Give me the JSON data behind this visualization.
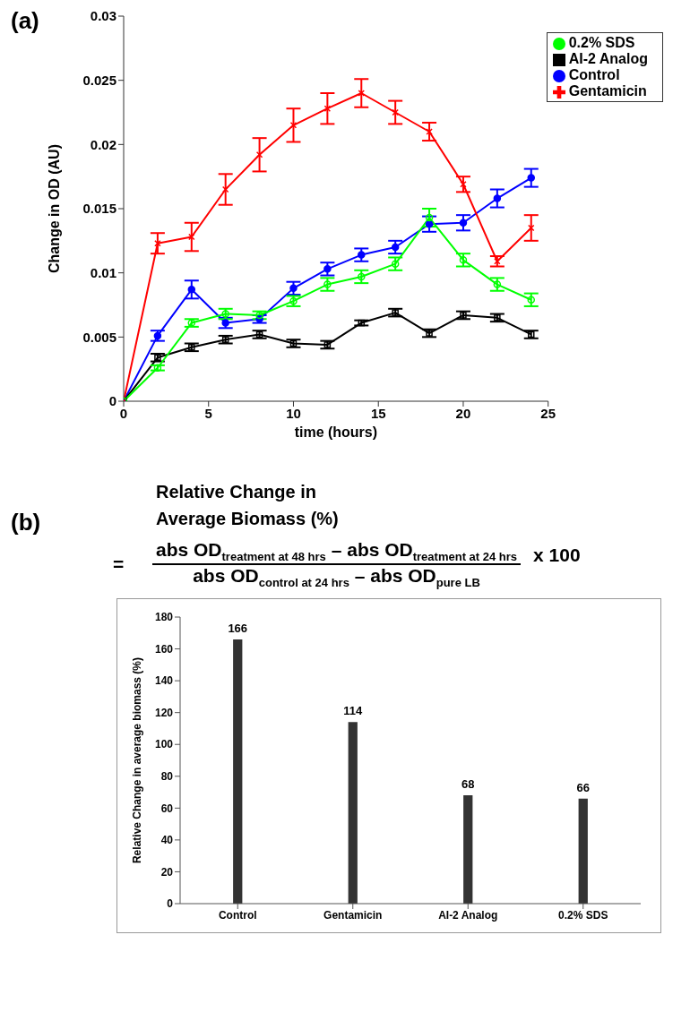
{
  "chart_data": [
    {
      "type": "line",
      "title": "(a)",
      "xlabel": "time (hours)",
      "ylabel": "Change in OD (AU)",
      "x": [
        0,
        2,
        4,
        6,
        8,
        10,
        12,
        14,
        16,
        18,
        20,
        22,
        24
      ],
      "xlim": [
        0,
        25
      ],
      "xticks": [
        0,
        5,
        10,
        15,
        20,
        25
      ],
      "ylim": [
        0,
        0.03
      ],
      "yticks": [
        0,
        0.005,
        0.01,
        0.015,
        0.02,
        0.025,
        0.03
      ],
      "grid": false,
      "legend": "top right",
      "series": [
        {
          "name": "Control",
          "color": "#0000ff",
          "marker": "circle",
          "values": [
            0,
            0.0051,
            0.0087,
            0.0061,
            0.0064,
            0.0088,
            0.0103,
            0.0114,
            0.012,
            0.0138,
            0.0139,
            0.0158,
            0.0174
          ],
          "errors": [
            null,
            0.0004,
            0.0007,
            0.0004,
            0.0003,
            0.0005,
            0.0005,
            0.0005,
            0.0005,
            0.0006,
            0.0006,
            0.0007,
            0.0007
          ]
        },
        {
          "name": "Gentamicin",
          "color": "#ff0000",
          "marker": "cross",
          "values": [
            0,
            0.0123,
            0.0128,
            0.0165,
            0.0192,
            0.0215,
            0.0228,
            0.024,
            0.0225,
            0.021,
            0.0169,
            0.0109,
            0.0135
          ],
          "errors": [
            null,
            0.0008,
            0.0011,
            0.0012,
            0.0013,
            0.0013,
            0.0012,
            0.0011,
            0.0009,
            0.0007,
            0.0006,
            0.0004,
            0.001
          ]
        },
        {
          "name": "AI-2 Analog",
          "color": "#000000",
          "marker": "square",
          "values": [
            0,
            0.0034,
            0.0042,
            0.0048,
            0.0052,
            0.0045,
            0.0044,
            0.0061,
            0.0069,
            0.0053,
            0.0067,
            0.0065,
            0.0052
          ],
          "errors": [
            null,
            0.0003,
            0.0003,
            0.0003,
            0.0003,
            0.0003,
            0.0003,
            0.0002,
            0.0003,
            0.0003,
            0.0003,
            0.0003,
            0.0003
          ]
        },
        {
          "name": "0.2% SDS",
          "color": "#00ff00",
          "marker": "circle",
          "values": [
            0,
            0.0026,
            0.0061,
            0.0068,
            0.0067,
            0.0078,
            0.0091,
            0.0097,
            0.0107,
            0.0143,
            0.011,
            0.0091,
            0.0079
          ],
          "errors": [
            null,
            0.0002,
            0.0003,
            0.0004,
            0.0003,
            0.0004,
            0.0005,
            0.0005,
            0.0005,
            0.0007,
            0.0005,
            0.0005,
            0.0005
          ]
        }
      ]
    },
    {
      "type": "bar",
      "title": "(b)",
      "subtitle": "Relative Change in Average Biomass (%)",
      "ylabel": "Relative Change in average biomass (%)",
      "annotations": [
        "=",
        "abs OD$_{treatment at 48 hrs}$ – abs OD$_{treatment at 24 hrs}$",
        "abs OD$_{control at 24 hrs}$ – abs OD$_{pure LB}$",
        "x 100"
      ],
      "categories": [
        "Control",
        "Gentamicin",
        "AI-2 Analog",
        "0.2% SDS"
      ],
      "values": [
        166,
        114,
        68,
        66
      ],
      "color": "#333333",
      "data_labels": true,
      "ylim": [
        0,
        180
      ],
      "yticks": [
        0,
        20,
        40,
        60,
        80,
        100,
        120,
        140,
        160,
        180
      ],
      "grid": false
    }
  ]
}
